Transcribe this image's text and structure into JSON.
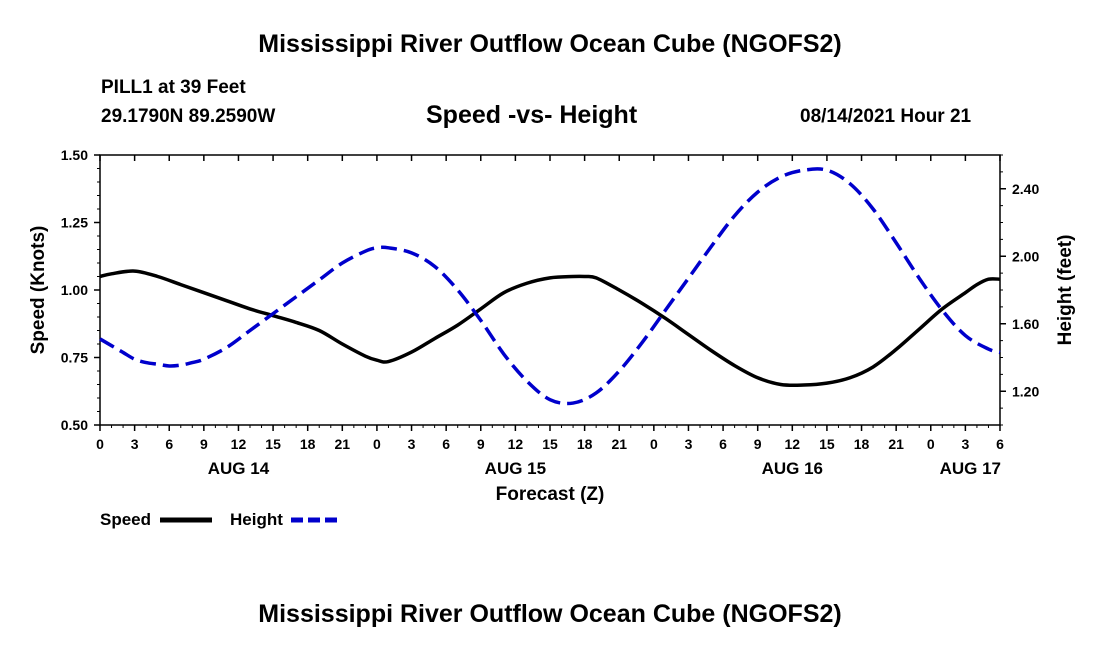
{
  "page": {
    "title_top": "Mississippi River Outflow Ocean Cube (NGOFS2)",
    "title_bottom": "Mississippi River Outflow Ocean Cube (NGOFS2)",
    "station": "PILL1 at 39 Feet",
    "coords": "29.1790N  89.2590W",
    "subtitle": "Speed -vs- Height",
    "timestamp": "08/14/2021 Hour 21"
  },
  "chart_data": {
    "type": "line",
    "title": "Speed -vs- Height",
    "xlabel": "Forecast (Z)",
    "ylabel": "Speed (Knots)",
    "y2label": "Height (feet)",
    "ylim": [
      0.5,
      1.5
    ],
    "y2lim": [
      1.0,
      2.6
    ],
    "xlim": [
      0,
      78
    ],
    "yticks": [
      "0.50",
      "0.75",
      "1.00",
      "1.25",
      "1.50"
    ],
    "y2ticks": [
      "1.20",
      "1.60",
      "2.00",
      "2.40"
    ],
    "xticks": [
      "0",
      "3",
      "6",
      "9",
      "12",
      "15",
      "18",
      "21",
      "0",
      "3",
      "6",
      "9",
      "12",
      "15",
      "18",
      "21",
      "0",
      "3",
      "6",
      "9",
      "12",
      "15",
      "18",
      "21",
      "0",
      "3",
      "6"
    ],
    "date_labels": [
      {
        "label": "AUG 14",
        "hour": 12
      },
      {
        "label": "AUG 15",
        "hour": 36
      },
      {
        "label": "AUG 16",
        "hour": 60
      },
      {
        "label": "AUG 17",
        "hour": 84
      }
    ],
    "colors": {
      "speed": "#000000",
      "height": "#0000cc"
    },
    "series": [
      {
        "name": "Speed",
        "axis": "left",
        "style": "solid",
        "x": [
          0,
          1,
          3,
          5,
          7,
          9,
          11,
          13,
          15,
          17,
          19,
          21,
          23,
          24,
          25,
          27,
          29,
          31,
          33,
          35,
          37,
          39,
          41,
          42,
          43,
          45,
          47,
          49,
          51,
          53,
          55,
          57,
          59,
          61,
          63,
          65,
          67,
          69,
          71,
          73,
          75,
          76,
          77,
          78
        ],
        "values": [
          1.05,
          1.06,
          1.07,
          1.05,
          1.02,
          0.99,
          0.96,
          0.93,
          0.905,
          0.88,
          0.85,
          0.8,
          0.755,
          0.74,
          0.735,
          0.77,
          0.82,
          0.87,
          0.93,
          0.99,
          1.025,
          1.045,
          1.05,
          1.05,
          1.045,
          1.0,
          0.95,
          0.895,
          0.835,
          0.775,
          0.72,
          0.675,
          0.65,
          0.648,
          0.655,
          0.675,
          0.715,
          0.78,
          0.855,
          0.93,
          0.99,
          1.02,
          1.04,
          1.04
        ]
      },
      {
        "name": "Height",
        "axis": "right",
        "style": "dashed",
        "x": [
          0,
          1,
          2,
          3,
          4,
          5,
          6,
          7,
          8,
          9,
          11,
          13,
          15,
          17,
          19,
          21,
          23,
          24,
          25,
          27,
          29,
          31,
          33,
          35,
          37,
          39,
          41,
          43,
          45,
          47,
          49,
          51,
          53,
          55,
          57,
          59,
          61,
          63,
          65,
          67,
          69,
          71,
          73,
          75,
          77,
          78
        ],
        "values": [
          1.51,
          1.47,
          1.43,
          1.39,
          1.37,
          1.36,
          1.35,
          1.355,
          1.37,
          1.39,
          1.46,
          1.56,
          1.66,
          1.76,
          1.86,
          1.96,
          2.03,
          2.05,
          2.05,
          2.02,
          1.94,
          1.8,
          1.62,
          1.42,
          1.26,
          1.15,
          1.13,
          1.19,
          1.32,
          1.49,
          1.68,
          1.87,
          2.06,
          2.24,
          2.38,
          2.47,
          2.51,
          2.51,
          2.43,
          2.28,
          2.08,
          1.87,
          1.68,
          1.53,
          1.45,
          1.43
        ]
      }
    ],
    "legend": [
      {
        "label": "Speed",
        "color": "#000000",
        "style": "solid"
      },
      {
        "label": "Height",
        "color": "#0000cc",
        "style": "dashed"
      }
    ]
  }
}
